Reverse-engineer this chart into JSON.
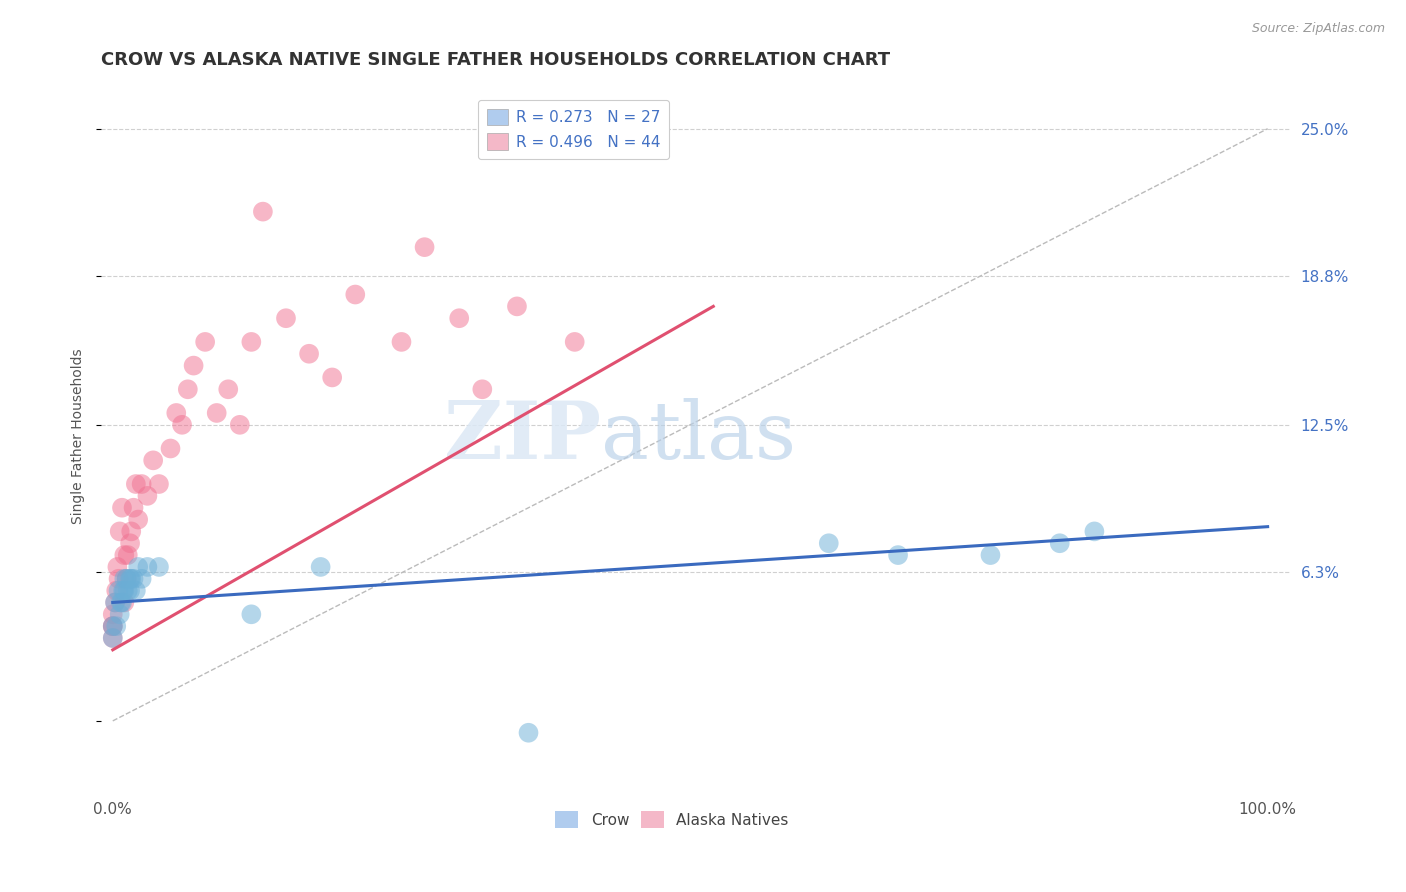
{
  "title": "CROW VS ALASKA NATIVE SINGLE FATHER HOUSEHOLDS CORRELATION CHART",
  "source": "Source: ZipAtlas.com",
  "ylabel": "Single Father Households",
  "xlim": [
    0.0,
    1.0
  ],
  "ylim": [
    -0.03,
    0.27
  ],
  "ytick_values": [
    0.0,
    0.063,
    0.125,
    0.188,
    0.25
  ],
  "ytick_right_labels": [
    "",
    "6.3%",
    "12.5%",
    "18.8%",
    "25.0%"
  ],
  "grid_ytick_values": [
    0.063,
    0.125,
    0.188,
    0.25
  ],
  "crow_color": "#6baed6",
  "alaska_color": "#f07090",
  "background_color": "#ffffff",
  "grid_color": "#d0d0d0",
  "title_fontsize": 13,
  "axis_fontsize": 10,
  "tick_fontsize": 11,
  "legend_fontsize": 11,
  "crow_scatter_x": [
    0.0,
    0.0,
    0.002,
    0.003,
    0.005,
    0.006,
    0.007,
    0.008,
    0.009,
    0.01,
    0.01,
    0.012,
    0.013,
    0.015,
    0.015,
    0.016,
    0.018,
    0.02,
    0.022,
    0.025,
    0.03,
    0.04,
    0.12,
    0.18,
    0.36,
    0.62,
    0.68,
    0.76,
    0.82,
    0.85
  ],
  "crow_scatter_y": [
    0.04,
    0.035,
    0.05,
    0.04,
    0.055,
    0.045,
    0.05,
    0.05,
    0.055,
    0.055,
    0.06,
    0.06,
    0.055,
    0.06,
    0.055,
    0.06,
    0.06,
    0.055,
    0.065,
    0.06,
    0.065,
    0.065,
    0.045,
    0.065,
    -0.005,
    0.075,
    0.07,
    0.07,
    0.075,
    0.08
  ],
  "alaska_scatter_x": [
    0.0,
    0.0,
    0.0,
    0.0,
    0.002,
    0.003,
    0.004,
    0.005,
    0.006,
    0.008,
    0.01,
    0.01,
    0.012,
    0.013,
    0.015,
    0.016,
    0.018,
    0.02,
    0.022,
    0.025,
    0.03,
    0.035,
    0.04,
    0.05,
    0.055,
    0.06,
    0.065,
    0.07,
    0.08,
    0.09,
    0.1,
    0.11,
    0.12,
    0.13,
    0.15,
    0.17,
    0.19,
    0.21,
    0.25,
    0.27,
    0.3,
    0.32,
    0.35,
    0.4
  ],
  "alaska_scatter_y": [
    0.04,
    0.035,
    0.04,
    0.045,
    0.05,
    0.055,
    0.065,
    0.06,
    0.08,
    0.09,
    0.05,
    0.07,
    0.06,
    0.07,
    0.075,
    0.08,
    0.09,
    0.1,
    0.085,
    0.1,
    0.095,
    0.11,
    0.1,
    0.115,
    0.13,
    0.125,
    0.14,
    0.15,
    0.16,
    0.13,
    0.14,
    0.125,
    0.16,
    0.215,
    0.17,
    0.155,
    0.145,
    0.18,
    0.16,
    0.2,
    0.17,
    0.14,
    0.175,
    0.16
  ],
  "alaska_line_x": [
    0.0,
    0.52
  ],
  "alaska_line_y": [
    0.03,
    0.175
  ],
  "crow_line_x": [
    0.0,
    1.0
  ],
  "crow_line_y": [
    0.05,
    0.082
  ],
  "dashed_line_x": [
    0.0,
    1.0
  ],
  "dashed_line_y": [
    0.0,
    0.25
  ]
}
